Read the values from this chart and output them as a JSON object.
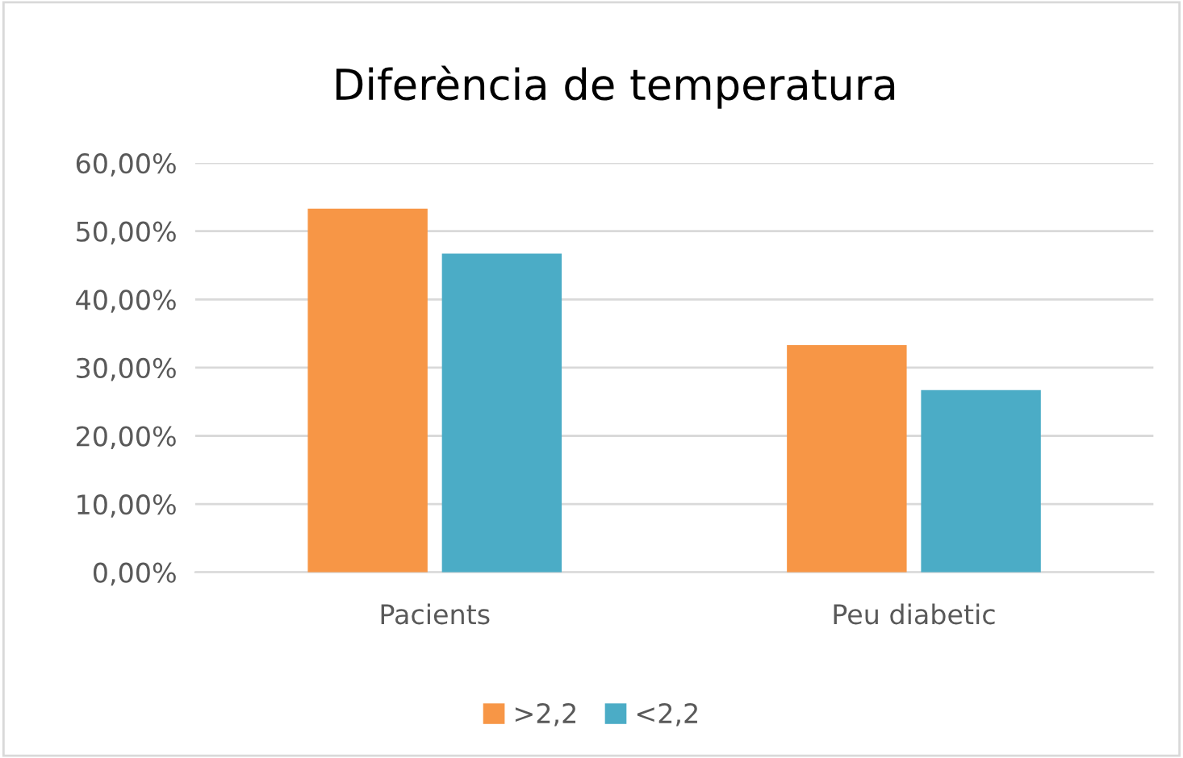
{
  "chart_data": {
    "type": "bar",
    "title": "Diferència de temperatura",
    "categories": [
      "Pacients",
      "Peu diabetic"
    ],
    "series": [
      {
        "name": ">2,2",
        "color": "#f79646",
        "values": [
          53.3,
          33.3
        ]
      },
      {
        "name": "<2,2",
        "color": "#4bacc6",
        "values": [
          46.7,
          26.7
        ]
      }
    ],
    "ylim": [
      0,
      60
    ],
    "yticks": [
      {
        "value": 0,
        "label": "0,00%"
      },
      {
        "value": 10,
        "label": "10,00%"
      },
      {
        "value": 20,
        "label": "20,00%"
      },
      {
        "value": 30,
        "label": "30,00%"
      },
      {
        "value": 40,
        "label": "40,00%"
      },
      {
        "value": 50,
        "label": "50,00%"
      },
      {
        "value": 60,
        "label": "60,00%"
      }
    ],
    "grid": "y",
    "legend": "bottom"
  }
}
